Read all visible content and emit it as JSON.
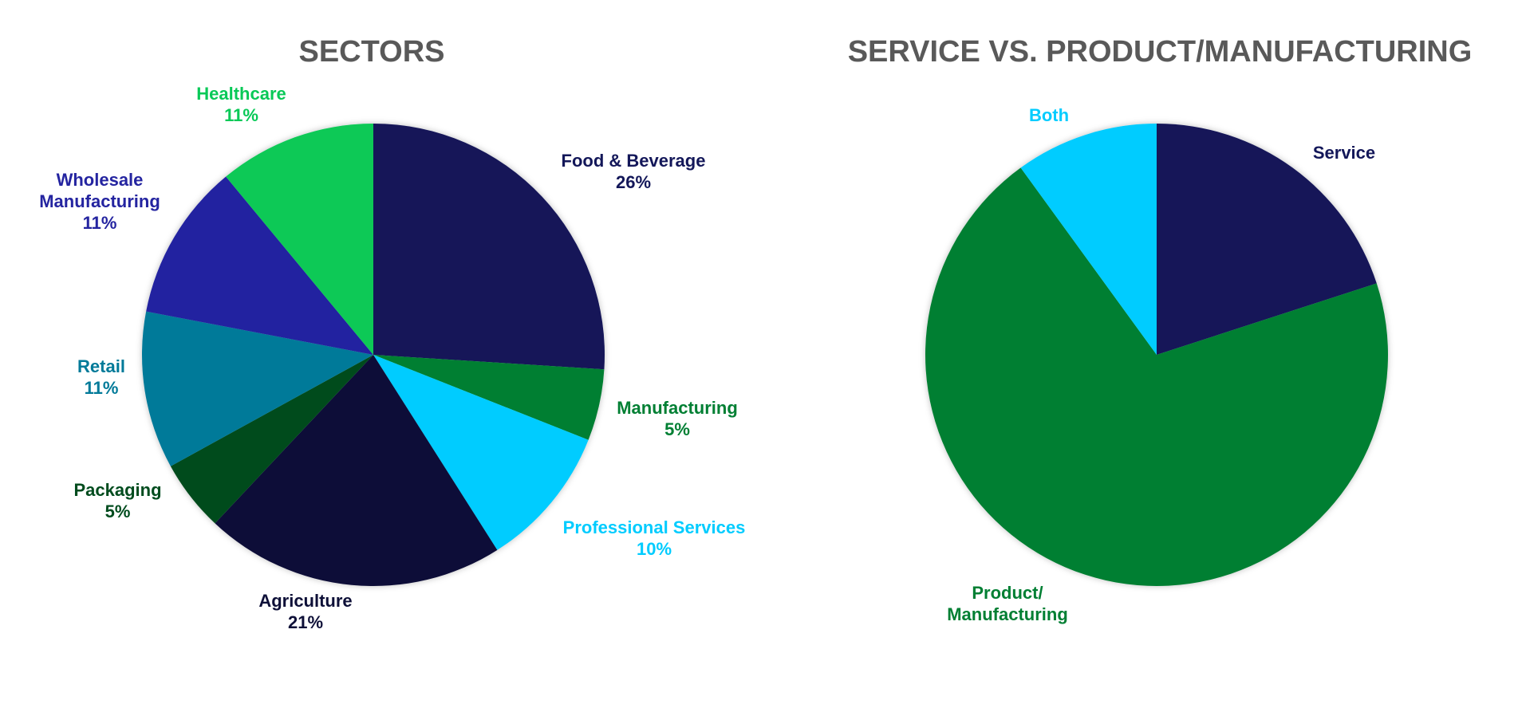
{
  "chart_data": [
    {
      "type": "pie",
      "title": "SECTORS",
      "slices": [
        {
          "label": "Food & Beverage",
          "value": 26,
          "value_label": "26%",
          "color": "#131759"
        },
        {
          "label": "Manufacturing",
          "value": 5,
          "value_label": "5%",
          "color": "#007F33"
        },
        {
          "label": "Professional Services",
          "value": 10,
          "value_label": "10%",
          "color": "#00CCFF"
        },
        {
          "label": "Agriculture",
          "value": 21,
          "value_label": "21%",
          "color": "#0E1038"
        },
        {
          "label": "Packaging",
          "value": 5,
          "value_label": "5%",
          "color": "#004C1E"
        },
        {
          "label": "Retail",
          "value": 11,
          "value_label": "11%",
          "color": "#007A99"
        },
        {
          "label": "Wholesale Manufacturing",
          "value": 11,
          "value_label": "11%",
          "color": "#2424A0"
        },
        {
          "label": "Healthcare",
          "value": 11,
          "value_label": "11%",
          "color": "#08C957"
        }
      ]
    },
    {
      "type": "pie",
      "title": "SERVICE VS. PRODUCT/MANUFACTURING",
      "slices": [
        {
          "label": "Service",
          "value": 20,
          "color": "#131759"
        },
        {
          "label": "Product/ Manufacturing",
          "value": 70,
          "color": "#007F33"
        },
        {
          "label": "Both",
          "value": 10,
          "color": "#00CCFF"
        }
      ]
    }
  ]
}
